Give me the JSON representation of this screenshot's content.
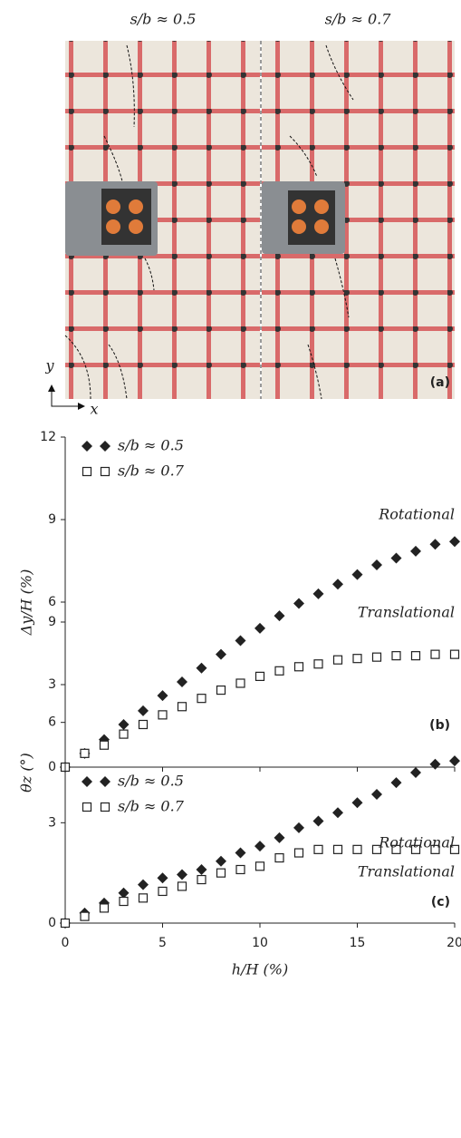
{
  "panel_a": {
    "titles": [
      "s/b ≈ 0.5",
      "s/b ≈ 0.7"
    ],
    "label": "(a)",
    "axis_y": "y",
    "axis_x": "x"
  },
  "chart_data": [
    {
      "type": "scatter",
      "ylabel": "Δy/H (%)",
      "panel": "(b)",
      "annotations": [
        "Rotational",
        "Translational"
      ],
      "x": [
        0,
        1,
        2,
        3,
        4,
        5,
        6,
        7,
        8,
        9,
        10,
        11,
        12,
        13,
        14,
        15,
        16,
        17,
        18,
        19,
        20
      ],
      "xlim": [
        0,
        20
      ],
      "ylim": [
        0,
        12
      ],
      "yticks": [
        0,
        3,
        6,
        9,
        12
      ],
      "series": [
        {
          "name": "s/b ≈ 0.5",
          "color": "#222222",
          "marker": "diamond",
          "values": [
            0,
            0.5,
            1.0,
            1.55,
            2.05,
            2.6,
            3.1,
            3.6,
            4.1,
            4.6,
            5.05,
            5.5,
            5.95,
            6.3,
            6.65,
            7.0,
            7.35,
            7.6,
            7.85,
            8.1,
            8.2
          ]
        },
        {
          "name": "s/b ≈ 0.7",
          "color": "#222222",
          "marker": "square",
          "values": [
            0,
            0.5,
            0.8,
            1.2,
            1.55,
            1.9,
            2.2,
            2.5,
            2.8,
            3.05,
            3.3,
            3.5,
            3.65,
            3.75,
            3.9,
            3.95,
            4.0,
            4.05,
            4.05,
            4.1,
            4.1
          ]
        }
      ]
    },
    {
      "type": "scatter",
      "ylabel": "θz (°)",
      "xlabel": "h/H (%)",
      "panel": "(c)",
      "annotations": [
        "Rotational",
        "Translational"
      ],
      "x": [
        0,
        1,
        2,
        3,
        4,
        5,
        6,
        7,
        8,
        9,
        10,
        11,
        12,
        13,
        14,
        15,
        16,
        17,
        18,
        19,
        20
      ],
      "xlim": [
        0,
        20
      ],
      "xticks": [
        0,
        5,
        10,
        15,
        20
      ],
      "ylim": [
        0,
        9
      ],
      "yticks": [
        0,
        3,
        6,
        9
      ],
      "series": [
        {
          "name": "s/b ≈ 0.5",
          "color": "#222222",
          "marker": "diamond",
          "values": [
            0,
            0.3,
            0.6,
            0.9,
            1.15,
            1.35,
            1.45,
            1.6,
            1.85,
            2.1,
            2.3,
            2.55,
            2.85,
            3.05,
            3.3,
            3.6,
            3.85,
            4.2,
            4.5,
            4.75,
            4.85
          ]
        },
        {
          "name": "s/b ≈ 0.7",
          "color": "#222222",
          "marker": "square",
          "values": [
            0,
            0.2,
            0.45,
            0.65,
            0.75,
            0.95,
            1.1,
            1.3,
            1.5,
            1.6,
            1.7,
            1.95,
            2.1,
            2.2,
            2.2,
            2.2,
            2.2,
            2.2,
            2.2,
            2.2,
            2.2
          ]
        }
      ]
    }
  ]
}
